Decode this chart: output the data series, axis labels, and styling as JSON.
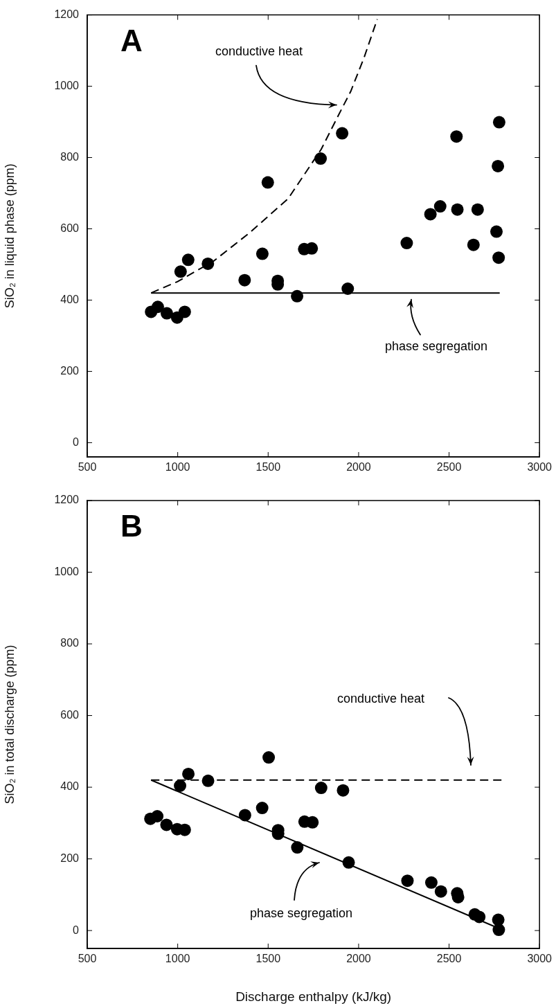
{
  "chart_data": [
    {
      "type": "scatter",
      "title": "A",
      "ylabel": "SiO₂ in liquid phase (ppm)",
      "xlim": [
        500,
        3000
      ],
      "xticks": [
        500,
        1000,
        1500,
        2000,
        2500,
        3000
      ],
      "ylim": [
        -40,
        1200
      ],
      "yticks": [
        0,
        200,
        400,
        600,
        800,
        1000,
        1200
      ],
      "grid": false,
      "marker": "circle",
      "series": [
        {
          "type": "scatter",
          "color": "#000000",
          "x": [
            853,
            890,
            940,
            997,
            1039,
            1016,
            1058,
            1167,
            1370,
            1468,
            1498,
            1553,
            1553,
            1660,
            1699,
            1741,
            1790,
            1909,
            1940,
            2266,
            2397,
            2451,
            2541,
            2546,
            2658,
            2635,
            2762,
            2770,
            2777,
            2774
          ],
          "values": [
            367,
            381,
            363,
            351,
            367,
            480,
            513,
            502,
            456,
            530,
            730,
            454,
            444,
            411,
            543,
            545,
            797,
            868,
            432,
            560,
            641,
            663,
            859,
            654,
            654,
            555,
            592,
            776,
            899,
            519
          ]
        },
        {
          "type": "line",
          "color": "#000000",
          "line_style": "dashed",
          "marker": "none",
          "x": [
            853,
            1000,
            1200,
            1400,
            1611,
            1793,
            1900,
            1956,
            2030,
            2103
          ],
          "values": [
            420,
            452,
            510,
            590,
            685,
            823,
            930,
            985,
            1080,
            1188
          ]
        },
        {
          "type": "line",
          "color": "#000000",
          "line_style": "solid",
          "marker": "none",
          "x": [
            853,
            2780
          ],
          "values": [
            420,
            420
          ]
        }
      ],
      "annotations": [
        "conductive heat",
        "phase segregation"
      ]
    },
    {
      "type": "scatter",
      "title": "B",
      "xlabel": "Discharge enthalpy (kJ/kg)",
      "ylabel": "SiO₂ in total discharge (ppm)",
      "xlim": [
        500,
        3000
      ],
      "xticks": [
        500,
        1000,
        1500,
        2000,
        2500,
        3000
      ],
      "ylim": [
        -50,
        1200
      ],
      "yticks": [
        0,
        200,
        400,
        600,
        800,
        1000,
        1200
      ],
      "grid": false,
      "marker": "circle",
      "series": [
        {
          "type": "scatter",
          "color": "#000000",
          "x": [
            849,
            887,
            938,
            997,
            1039,
            1013,
            1059,
            1168,
            1372,
            1467,
            1503,
            1555,
            1555,
            1661,
            1701,
            1745,
            1793,
            1914,
            1945,
            2270,
            2402,
            2455,
            2545,
            2550,
            2642,
            2667,
            2772,
            2775
          ],
          "values": [
            312,
            319,
            295,
            283,
            281,
            404,
            437,
            418,
            322,
            342,
            483,
            280,
            270,
            232,
            304,
            302,
            398,
            391,
            190,
            139,
            134,
            109,
            104,
            93,
            45,
            38,
            30,
            2
          ]
        },
        {
          "type": "line",
          "color": "#000000",
          "line_style": "dashed",
          "marker": "none",
          "x": [
            853,
            2790
          ],
          "values": [
            420,
            420
          ]
        },
        {
          "type": "line",
          "color": "#000000",
          "line_style": "solid",
          "marker": "none",
          "x": [
            853,
            2780
          ],
          "values": [
            420,
            5
          ]
        }
      ],
      "annotations": [
        "conductive heat",
        "phase segregation"
      ]
    }
  ]
}
